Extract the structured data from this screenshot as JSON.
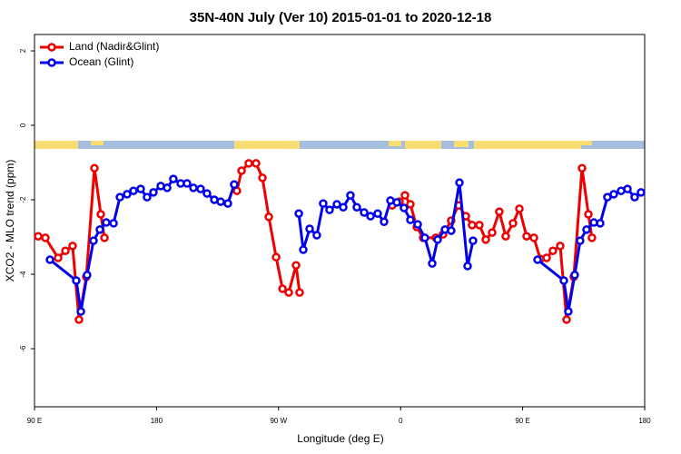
{
  "chart_data": {
    "type": "line",
    "title": "35N-40N July (Ver 10)   2015-01-01 to 2020-12-18",
    "xlabel": "Longitude (deg E)",
    "ylabel": "XCO2 - MLO trend (ppm)",
    "xlim": [
      90,
      540
    ],
    "ylim": [
      -7.56,
      2.44
    ],
    "xticks": [
      {
        "value": 90,
        "label": "90 E"
      },
      180,
      {
        "value": 270,
        "label": "90 W"
      },
      {
        "value": 360,
        "label": "0"
      },
      {
        "value": 450,
        "label": "90 E"
      },
      {
        "value": 540,
        "label": "180"
      }
    ],
    "yticks": [
      2,
      0,
      -2,
      -4,
      -6
    ],
    "legend": "top-left",
    "series": [
      {
        "name": "Land (Nadir&Glint)",
        "color": "#ee0000",
        "x": [
          92.7,
          98.0,
          107.4,
          112.8,
          118.1,
          122.8,
          128.2,
          134.2,
          138.9,
          141.6,
          200,
          237.3,
          239.3,
          242.7,
          248.0,
          253.4,
          258.1,
          262.8,
          268.2,
          272.9,
          277.5,
          282.9,
          285.5,
          320,
          353.8,
          359.2,
          363.2,
          367.2,
          371.9,
          376.6,
          386.0,
          391.3,
          397.3,
          402.7,
          408.1,
          412.7,
          418.1,
          422.8,
          427.5,
          432.8,
          437.5,
          442.9,
          447.6,
          452.9,
          458.3,
          463.0,
          467.7,
          472.3,
          477.7,
          482.4,
          487.7,
          493.8,
          498.5,
          501.1
        ],
        "values": [
          -2.98,
          -3.02,
          -3.56,
          -3.37,
          -3.24,
          -5.22,
          -4.07,
          -1.15,
          -2.39,
          -3.02,
          null,
          -1.59,
          -1.76,
          -1.22,
          -1.02,
          -1.02,
          -1.41,
          -2.46,
          -3.54,
          -4.39,
          -4.49,
          -3.76,
          -4.49,
          null,
          -2.15,
          -2.05,
          -1.88,
          -2.12,
          -2.73,
          -3.02,
          -3.02,
          -2.93,
          -2.56,
          -2.15,
          -2.44,
          -2.68,
          -2.68,
          -3.07,
          -2.88,
          -2.32,
          -2.98,
          -2.63,
          -2.24,
          -2.98,
          -3.02,
          -3.59,
          -3.56,
          -3.37,
          -3.24,
          -5.22,
          -4.07,
          -1.15,
          -2.39,
          -3.02
        ]
      },
      {
        "name": "Ocean (Glint)",
        "color": "#0000ee",
        "x": [
          101.4,
          120.8,
          124.2,
          128.8,
          133.5,
          138.2,
          142.9,
          148.3,
          153.0,
          158.3,
          163.0,
          168.3,
          173.0,
          177.7,
          183.1,
          187.8,
          192.4,
          197.8,
          202.5,
          207.2,
          212.5,
          217.2,
          222.6,
          227.3,
          232.6,
          237.3,
          260,
          284.9,
          288.2,
          292.9,
          298.2,
          302.9,
          307.6,
          313.0,
          317.7,
          323.0,
          327.7,
          333.1,
          337.8,
          343.1,
          347.8,
          352.5,
          357.2,
          362.5,
          367.2,
          372.6,
          377.9,
          383.3,
          387.3,
          392.7,
          397.3,
          403.4,
          409.4,
          413.4,
          450,
          461.0,
          480.4,
          483.7,
          488.4,
          492.4,
          497.1,
          502.5,
          507.2,
          512.5,
          517.2,
          522.6,
          527.3,
          532.6,
          537.3
        ],
        "values": [
          -3.61,
          -4.17,
          -5.0,
          -4.02,
          -3.1,
          -2.8,
          -2.61,
          -2.63,
          -1.93,
          -1.85,
          -1.76,
          -1.71,
          -1.93,
          -1.8,
          -1.63,
          -1.68,
          -1.44,
          -1.56,
          -1.56,
          -1.68,
          -1.71,
          -1.83,
          -2.0,
          -2.05,
          -2.1,
          -1.59,
          null,
          -2.37,
          -3.34,
          -2.78,
          -2.95,
          -2.1,
          -2.27,
          -2.12,
          -2.2,
          -1.88,
          -2.2,
          -2.34,
          -2.44,
          -2.37,
          -2.59,
          -2.02,
          -2.07,
          -2.22,
          -2.54,
          -2.66,
          -3.02,
          -3.71,
          -3.07,
          -2.8,
          -2.83,
          -1.54,
          -3.78,
          -3.1,
          null,
          -3.61,
          -4.17,
          -5.0,
          -4.02,
          -3.1,
          -2.8,
          -2.61,
          -2.63,
          -1.93,
          -1.85,
          -1.76,
          -1.71,
          -1.93,
          -1.8
        ]
      }
    ]
  }
}
